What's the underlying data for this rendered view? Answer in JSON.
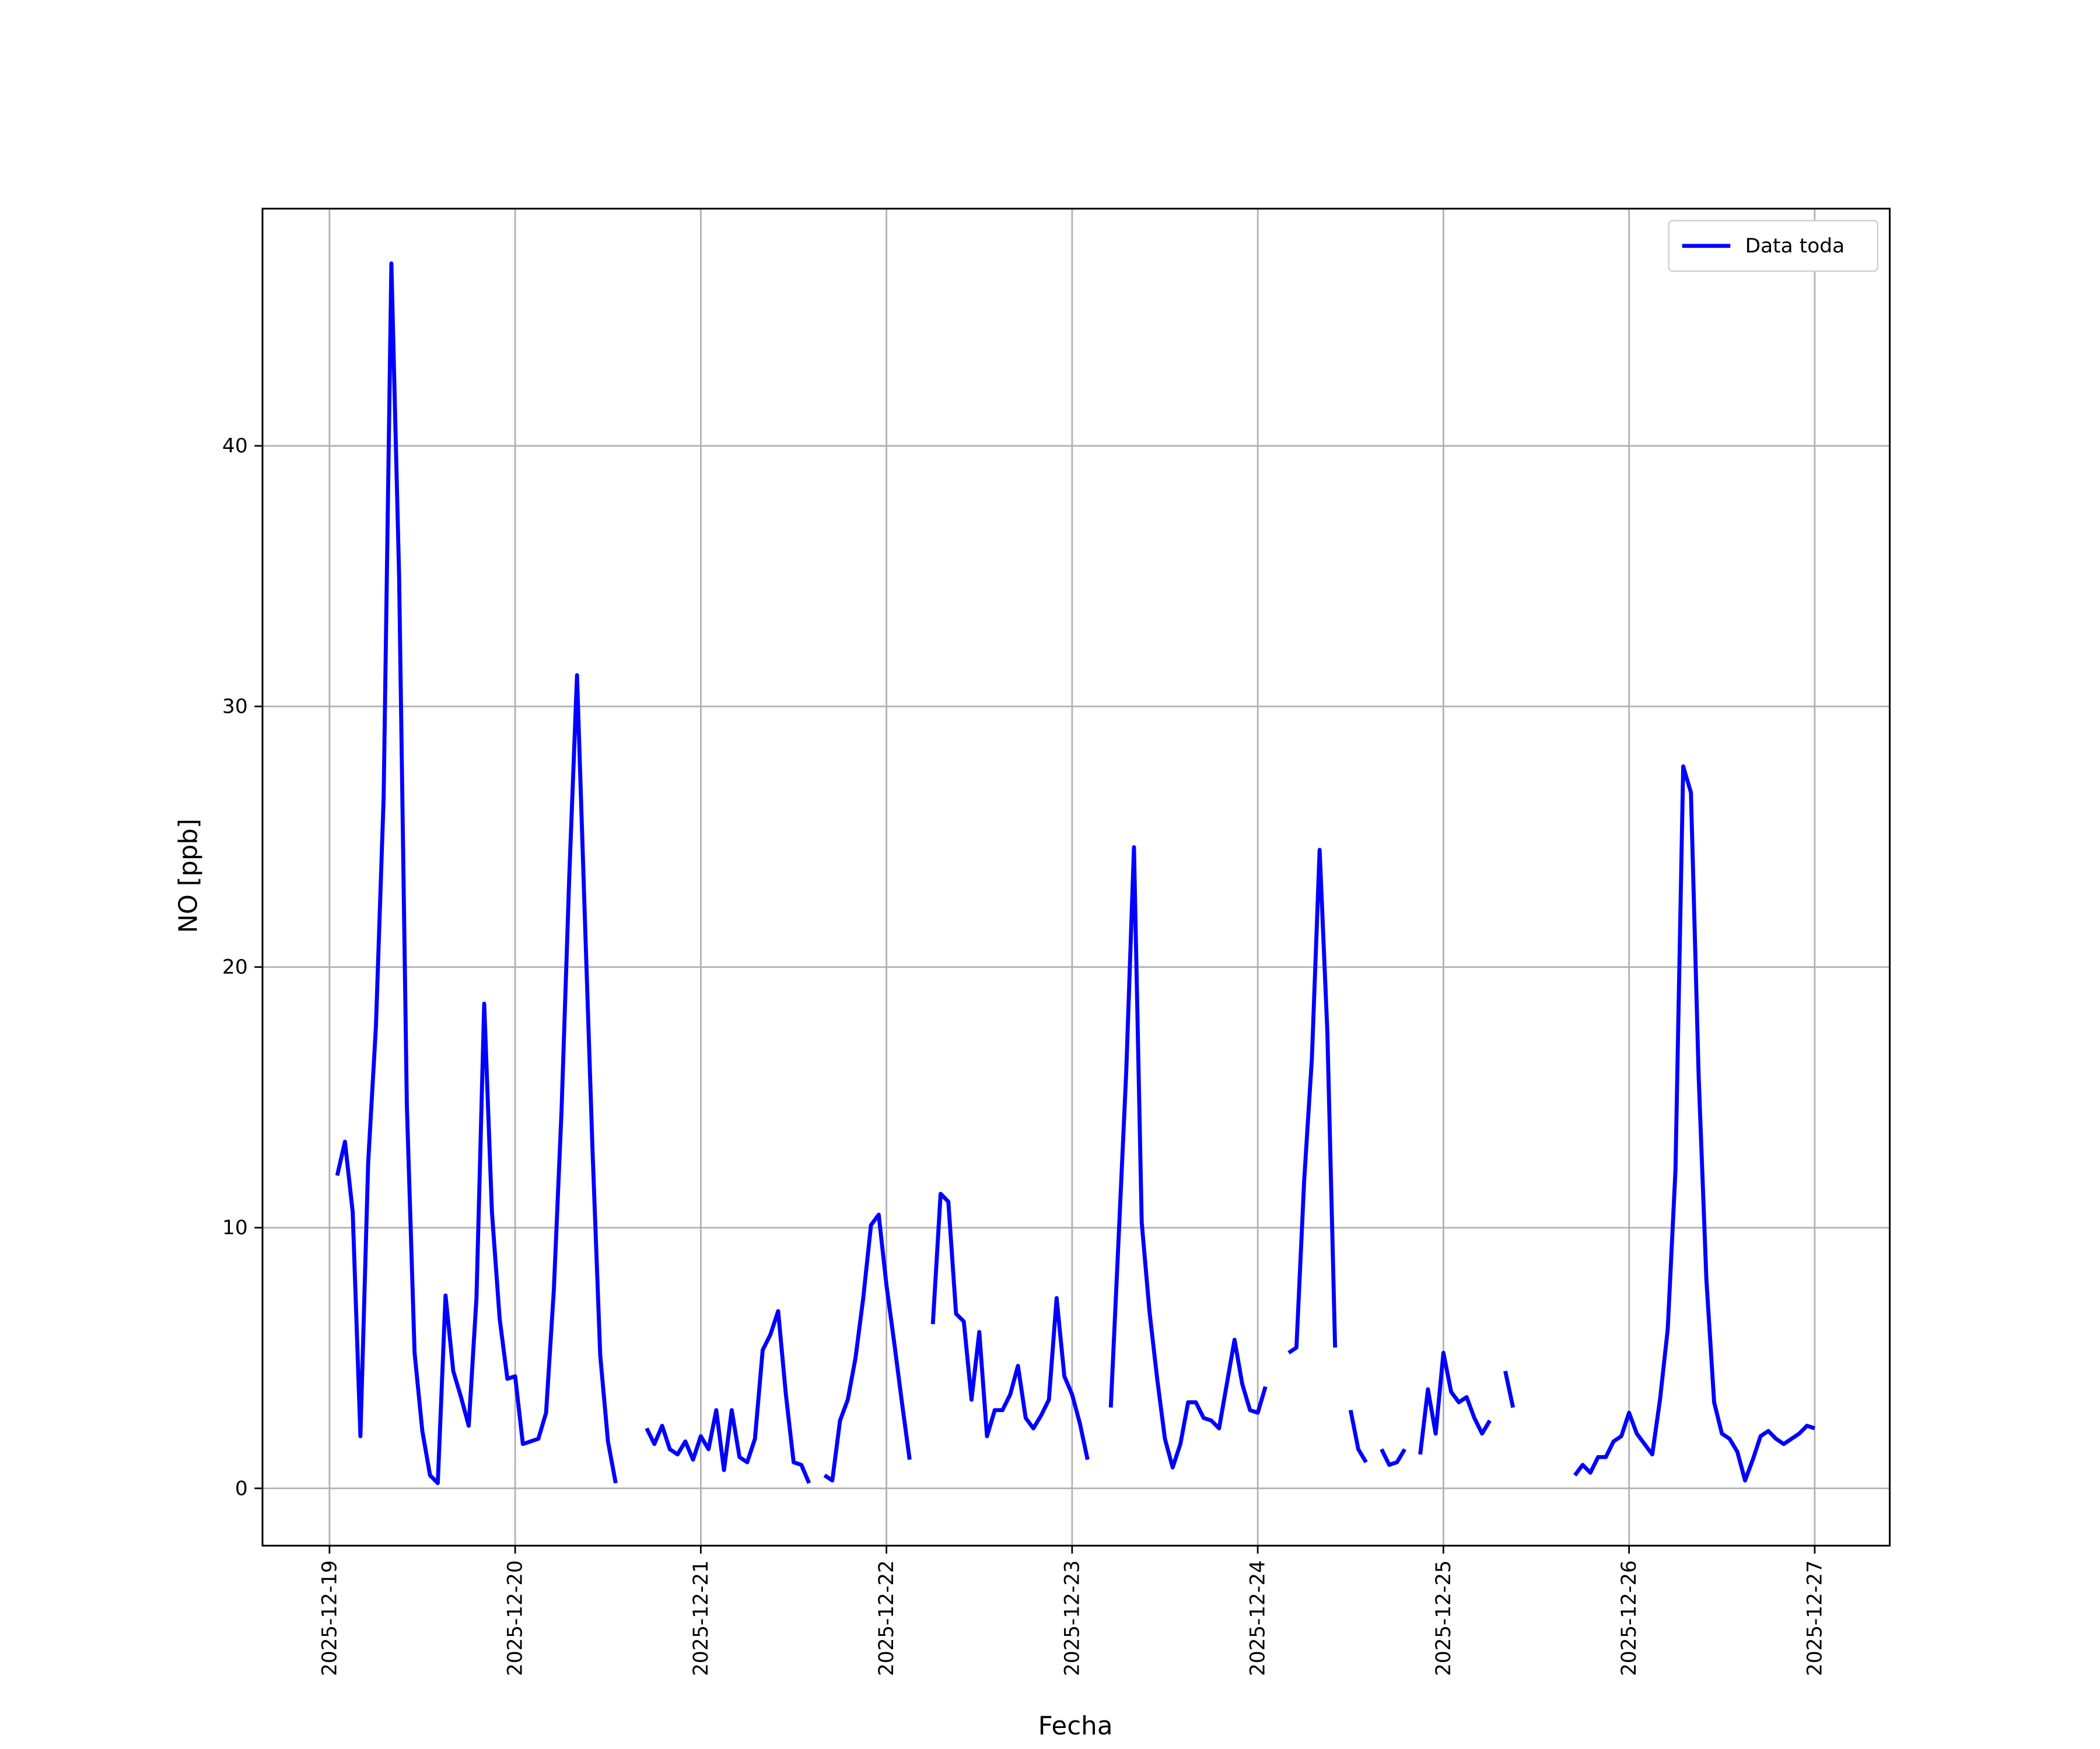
{
  "chart_data": {
    "type": "line",
    "xlabel": "Fecha",
    "ylabel": "NO [ppb]",
    "x": [
      1,
      2,
      3,
      4,
      5,
      6,
      7,
      8,
      9,
      10,
      11,
      12,
      13,
      14,
      15,
      16,
      17,
      18,
      19,
      20,
      21,
      22,
      23,
      24,
      25,
      26,
      27,
      28,
      29,
      30,
      31,
      32,
      33,
      34,
      35,
      36,
      37,
      38,
      39,
      40,
      41,
      42,
      43,
      44,
      45,
      46,
      47,
      48,
      49,
      50,
      51,
      52,
      53,
      54,
      55,
      56,
      57,
      58,
      59,
      60,
      61,
      62,
      63,
      64,
      65,
      66,
      67,
      68,
      69,
      70,
      71,
      72,
      73,
      74,
      75,
      76,
      77,
      78,
      79,
      80,
      81,
      82,
      83,
      84,
      85,
      86,
      87,
      88,
      89,
      90,
      91,
      92,
      93,
      94,
      95,
      96,
      97,
      98,
      99,
      100,
      101,
      102,
      103,
      104,
      105,
      106,
      107,
      108,
      109,
      110,
      111,
      112,
      113,
      114,
      115,
      116,
      117,
      118,
      119,
      120,
      121,
      122,
      123,
      124,
      125,
      126,
      127,
      128,
      129,
      130,
      131,
      132,
      133,
      134,
      135,
      136,
      137,
      138,
      139,
      140,
      141,
      142,
      143,
      144,
      145,
      146,
      147,
      148,
      149,
      150,
      151,
      152,
      153,
      154,
      155,
      156,
      157,
      158,
      159,
      160,
      161,
      162,
      163,
      164,
      165,
      166,
      167,
      168,
      169,
      170,
      171,
      172,
      173,
      174,
      175,
      176,
      177,
      178,
      179,
      180,
      181,
      182,
      183,
      184,
      185,
      186,
      187,
      188,
      189,
      190,
      191,
      192
    ],
    "series": [
      {
        "name": "Data toda",
        "color": "#0000ff",
        "values": [
          12.0,
          13.3,
          10.6,
          2.0,
          12.5,
          17.7,
          26.5,
          47.0,
          35.0,
          14.7,
          5.2,
          2.2,
          0.5,
          0.2,
          7.4,
          4.5,
          3.5,
          2.4,
          7.3,
          18.6,
          10.6,
          6.5,
          4.2,
          4.3,
          1.7,
          1.8,
          1.9,
          2.9,
          7.6,
          14.5,
          23.5,
          31.2,
          22.0,
          13.0,
          5.1,
          1.8,
          0.2,
          null,
          null,
          null,
          2.3,
          1.7,
          2.4,
          1.5,
          1.3,
          1.8,
          1.1,
          2.0,
          1.5,
          3.0,
          0.7,
          3.0,
          1.2,
          1.0,
          1.9,
          5.3,
          5.9,
          6.8,
          3.6,
          1.0,
          0.9,
          0.2,
          null,
          0.5,
          0.3,
          2.6,
          3.4,
          5.0,
          7.3,
          10.1,
          10.5,
          7.8,
          5.6,
          3.3,
          1.1,
          null,
          null,
          6.3,
          11.3,
          11.0,
          6.7,
          6.4,
          3.4,
          6.0,
          2.0,
          3.0,
          3.0,
          3.6,
          4.7,
          2.7,
          2.3,
          2.8,
          3.4,
          7.3,
          4.3,
          3.6,
          2.5,
          1.1,
          null,
          null,
          3.1,
          9.5,
          16.0,
          24.6,
          10.2,
          6.8,
          4.2,
          1.9,
          0.8,
          1.7,
          3.3,
          3.3,
          2.7,
          2.6,
          2.3,
          4.0,
          5.7,
          4.0,
          3.0,
          2.9,
          3.9,
          null,
          null,
          5.2,
          5.4,
          11.8,
          16.5,
          24.5,
          17.5,
          5.4,
          null,
          3.0,
          1.5,
          1.0,
          null,
          1.5,
          0.9,
          1.0,
          1.5,
          null,
          1.3,
          3.8,
          2.1,
          5.2,
          3.7,
          3.3,
          3.5,
          2.7,
          2.1,
          2.6,
          null,
          4.5,
          3.1,
          null,
          null,
          null,
          null,
          null,
          null,
          null,
          0.5,
          0.9,
          0.6,
          1.2,
          1.2,
          1.8,
          2.0,
          2.9,
          2.1,
          1.7,
          1.3,
          3.4,
          6.1,
          12.2,
          27.7,
          26.7,
          15.8,
          8.0,
          3.3,
          2.1,
          1.9,
          1.4,
          0.3,
          1.1,
          2.0,
          2.2,
          1.9,
          1.7,
          1.9,
          2.1,
          2.4,
          2.3
        ]
      }
    ],
    "xlim": [
      -8.66,
      201.7
    ],
    "xticks": [
      {
        "value": 0,
        "label": "2025-12-19"
      },
      {
        "value": 24,
        "label": "2025-12-20"
      },
      {
        "value": 48,
        "label": "2025-12-21"
      },
      {
        "value": 72,
        "label": "2025-12-22"
      },
      {
        "value": 96,
        "label": "2025-12-23"
      },
      {
        "value": 120,
        "label": "2025-12-24"
      },
      {
        "value": 144,
        "label": "2025-12-25"
      },
      {
        "value": 168,
        "label": "2025-12-26"
      },
      {
        "value": 192,
        "label": "2025-12-27"
      }
    ],
    "ylim": [
      -2.2,
      49.1
    ],
    "yticks": [
      0,
      10,
      20,
      30,
      40
    ],
    "grid": true,
    "legend": "upper right"
  }
}
